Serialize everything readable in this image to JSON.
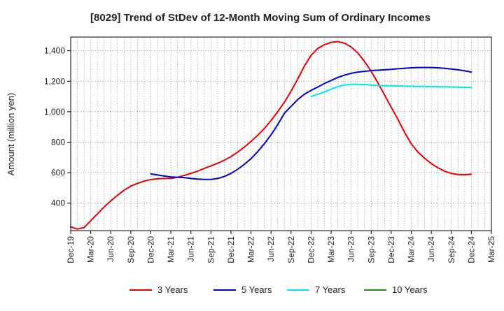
{
  "chart_data": {
    "type": "line",
    "title": "[8029]  Trend of StDev of 12-Month Moving Sum of Ordinary Incomes",
    "xlabel": "",
    "ylabel": "Amount (million yen)",
    "ylim": [
      220,
      1490
    ],
    "y_ticks": [
      400,
      600,
      800,
      1000,
      1200,
      1400
    ],
    "y_tick_labels": [
      "400",
      "600",
      "800",
      "1,000",
      "1,200",
      "1,400"
    ],
    "x_range": [
      0,
      63
    ],
    "x_ticks": [
      0,
      3,
      6,
      9,
      12,
      15,
      18,
      21,
      24,
      27,
      30,
      33,
      36,
      39,
      42,
      45,
      48,
      51,
      54,
      57,
      60,
      63
    ],
    "x_tick_labels": [
      "Dec-19",
      "Mar-20",
      "Jun-20",
      "Sep-20",
      "Dec-20",
      "Mar-21",
      "Jun-21",
      "Sep-21",
      "Dec-21",
      "Mar-22",
      "Jun-22",
      "Sep-22",
      "Dec-22",
      "Mar-23",
      "Jun-23",
      "Sep-23",
      "Dec-23",
      "Mar-24",
      "Jun-24",
      "Sep-24",
      "Dec-24",
      "Mar-25"
    ],
    "grid": true,
    "legend_position": "bottom",
    "series": [
      {
        "name": "3 Years",
        "color": "#e60000",
        "x": [
          0,
          1,
          2,
          3,
          4,
          5,
          6,
          7,
          8,
          9,
          10,
          11,
          12,
          13,
          14,
          15,
          16,
          17,
          18,
          19,
          20,
          21,
          22,
          23,
          24,
          25,
          26,
          27,
          28,
          29,
          30,
          31,
          32,
          33,
          34,
          35,
          36,
          37,
          38,
          39,
          40,
          41,
          42,
          43,
          44,
          45,
          46,
          47,
          48,
          49,
          50,
          51,
          52,
          53,
          54,
          55,
          56,
          57,
          58,
          59,
          60
        ],
        "values": [
          245,
          230,
          240,
          285,
          330,
          375,
          415,
          452,
          485,
          512,
          530,
          545,
          555,
          560,
          562,
          562,
          570,
          582,
          595,
          610,
          628,
          645,
          662,
          682,
          705,
          735,
          768,
          805,
          845,
          890,
          942,
          1000,
          1062,
          1135,
          1215,
          1300,
          1370,
          1415,
          1440,
          1455,
          1460,
          1450,
          1425,
          1385,
          1330,
          1265,
          1190,
          1110,
          1030,
          950,
          865,
          790,
          735,
          695,
          660,
          632,
          610,
          595,
          588,
          587,
          590
        ]
      },
      {
        "name": "5 Years",
        "color": "#0000cc",
        "x": [
          12,
          13,
          14,
          15,
          16,
          17,
          18,
          19,
          20,
          21,
          22,
          23,
          24,
          25,
          26,
          27,
          28,
          29,
          30,
          31,
          32,
          33,
          34,
          35,
          36,
          37,
          38,
          39,
          40,
          41,
          42,
          43,
          44,
          45,
          46,
          47,
          48,
          49,
          50,
          51,
          52,
          53,
          54,
          55,
          56,
          57,
          58,
          59,
          60
        ],
        "values": [
          592,
          585,
          578,
          572,
          570,
          568,
          562,
          558,
          556,
          556,
          562,
          575,
          595,
          622,
          655,
          692,
          738,
          790,
          848,
          915,
          990,
          1035,
          1080,
          1115,
          1140,
          1162,
          1185,
          1205,
          1225,
          1240,
          1252,
          1260,
          1265,
          1270,
          1272,
          1275,
          1278,
          1282,
          1285,
          1288,
          1290,
          1290,
          1290,
          1288,
          1285,
          1280,
          1275,
          1268,
          1260
        ]
      },
      {
        "name": "7 Years",
        "color": "#00e5ee",
        "x": [
          36,
          37,
          38,
          39,
          40,
          41,
          42,
          43,
          44,
          45,
          46,
          47,
          48,
          49,
          50,
          51,
          52,
          53,
          54,
          55,
          56,
          57,
          58,
          59,
          60
        ],
        "values": [
          1100,
          1115,
          1130,
          1148,
          1165,
          1175,
          1180,
          1180,
          1178,
          1175,
          1172,
          1170,
          1170,
          1169,
          1168,
          1167,
          1166,
          1165,
          1165,
          1164,
          1163,
          1162,
          1161,
          1160,
          1159
        ]
      },
      {
        "name": "10 Years",
        "color": "#228b22",
        "x": [],
        "values": []
      }
    ]
  }
}
